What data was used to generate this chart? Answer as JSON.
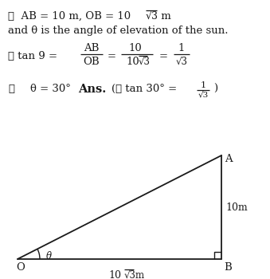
{
  "bg_color": "#ffffff",
  "text_color": "#1a1a1a",
  "fs": 9.5,
  "triangle": {
    "O": [
      0.0,
      0.0
    ],
    "B": [
      1.732,
      0.0
    ],
    "A": [
      1.732,
      1.0
    ]
  },
  "label_O": "O",
  "label_B": "B",
  "label_A": "A",
  "label_AB": "10m",
  "label_OB": "10√3m",
  "label_theta": "θ"
}
